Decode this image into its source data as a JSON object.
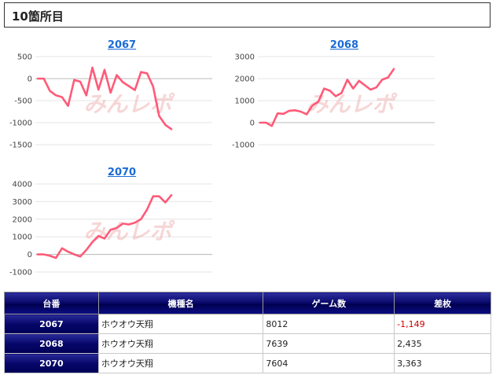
{
  "header": {
    "title": "10箇所目"
  },
  "watermark": "みんレポ",
  "colors": {
    "line": "#ff5a78",
    "link": "#1a6bd6",
    "header_bg": "#000060",
    "negative": "#cc0000"
  },
  "chart_data": [
    {
      "type": "line",
      "title": "2067",
      "ylim": [
        -1500,
        500
      ],
      "yticks": [
        500,
        0,
        -500,
        -1000,
        -1500
      ],
      "grid": true,
      "y": [
        0,
        0,
        -280,
        -380,
        -420,
        -620,
        -30,
        -70,
        -380,
        250,
        -250,
        200,
        -320,
        80,
        -80,
        -170,
        -260,
        150,
        120,
        -180,
        -850,
        -1050,
        -1149
      ]
    },
    {
      "type": "line",
      "title": "2068",
      "ylim": [
        -1000,
        3000
      ],
      "yticks": [
        3000,
        2000,
        1000,
        0,
        -1000
      ],
      "grid": true,
      "y": [
        0,
        0,
        -150,
        420,
        400,
        540,
        560,
        500,
        380,
        780,
        950,
        1550,
        1450,
        1200,
        1350,
        1950,
        1550,
        1900,
        1700,
        1500,
        1600,
        1950,
        2050,
        2435
      ]
    },
    {
      "type": "line",
      "title": "2070",
      "ylim": [
        -1000,
        4000
      ],
      "yticks": [
        4000,
        3000,
        2000,
        1000,
        0,
        -1000
      ],
      "grid": true,
      "y": [
        0,
        0,
        -80,
        -200,
        350,
        150,
        0,
        -120,
        250,
        700,
        1050,
        900,
        1400,
        1500,
        1750,
        1700,
        1800,
        2000,
        2550,
        3300,
        3300,
        2950,
        3363
      ]
    }
  ],
  "table": {
    "headers": [
      "台番",
      "機種名",
      "ゲーム数",
      "差枚"
    ],
    "rows": [
      {
        "num": "2067",
        "model": "ホウオウ天翔",
        "games": "8012",
        "diff": "-1,149",
        "negative": true
      },
      {
        "num": "2068",
        "model": "ホウオウ天翔",
        "games": "7639",
        "diff": "2,435",
        "negative": false
      },
      {
        "num": "2070",
        "model": "ホウオウ天翔",
        "games": "7604",
        "diff": "3,363",
        "negative": false
      }
    ]
  }
}
